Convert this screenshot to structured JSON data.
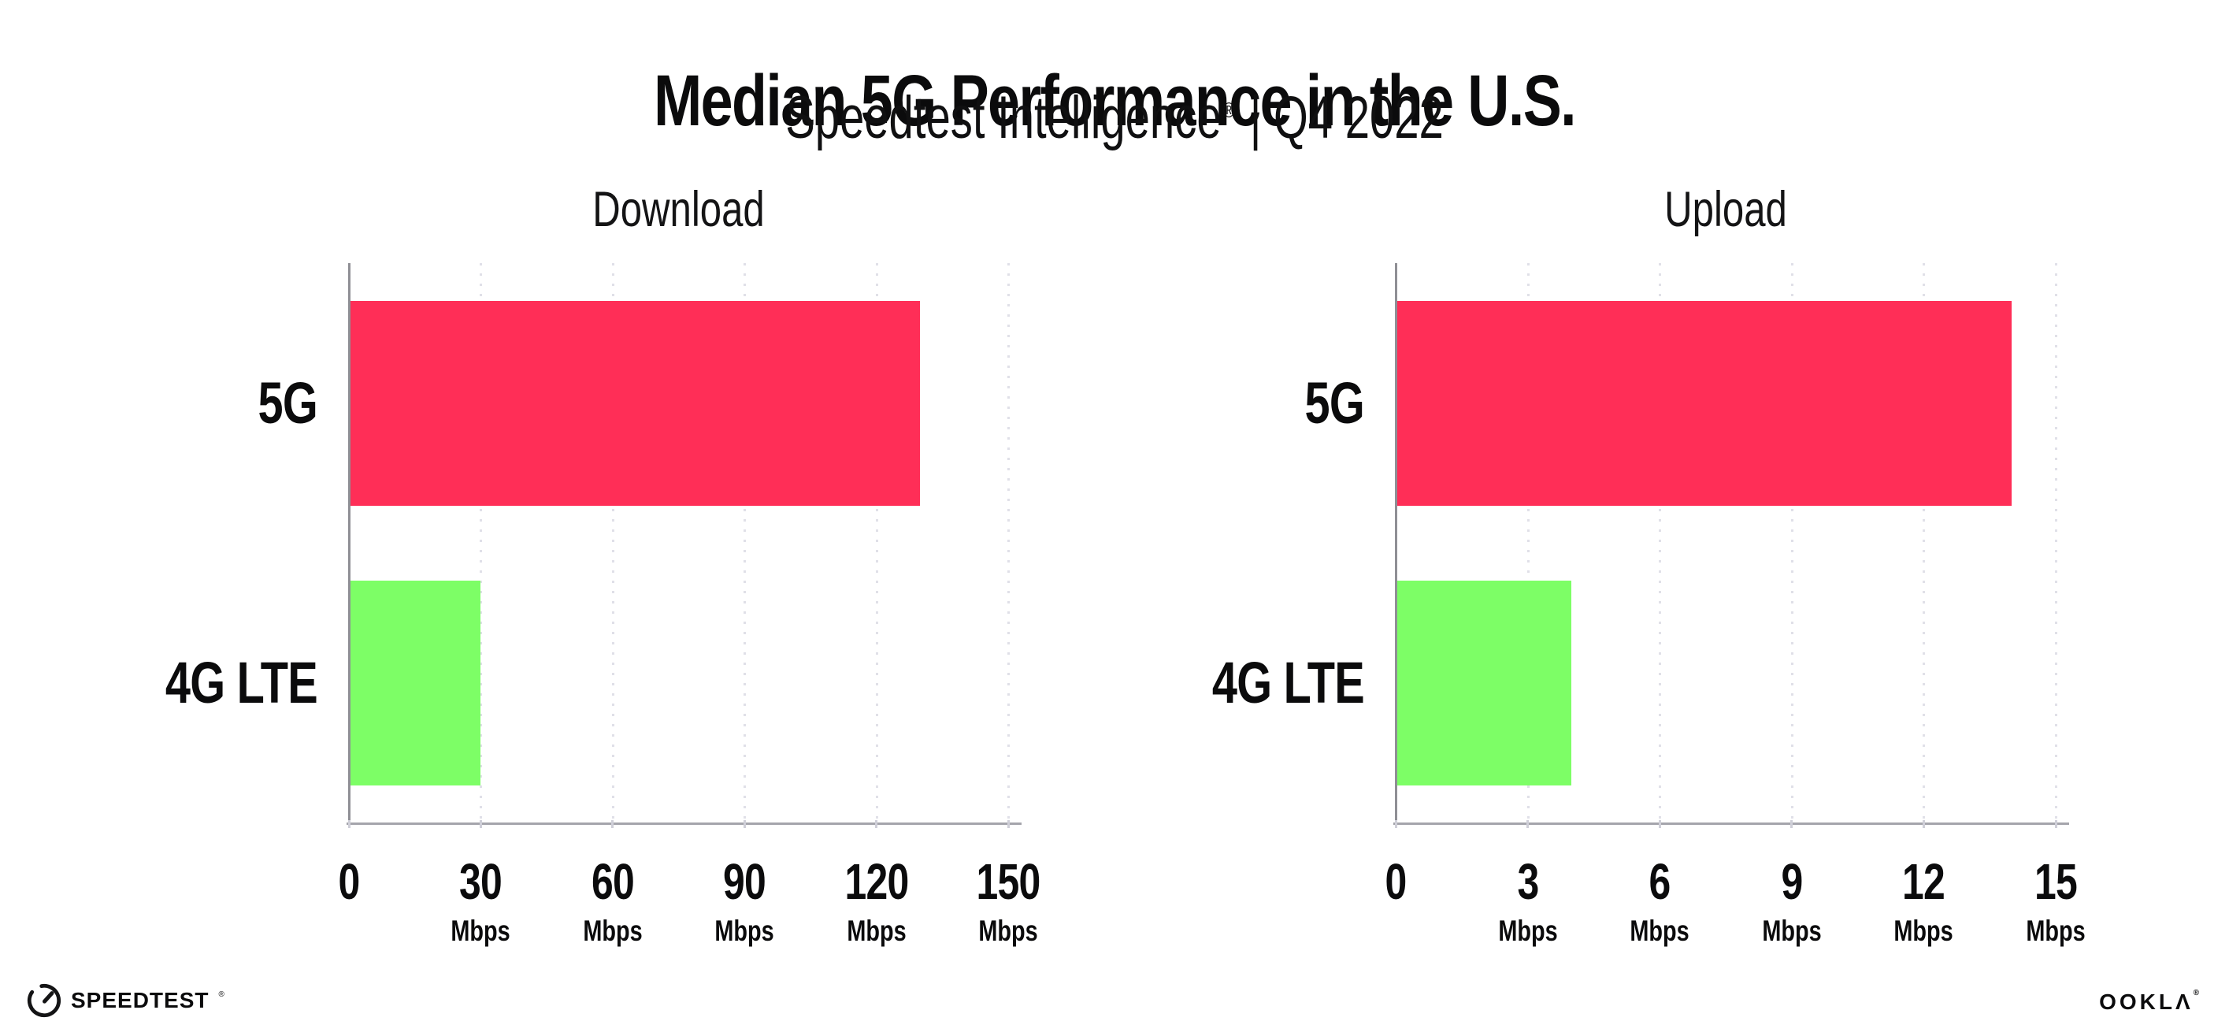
{
  "header": {
    "title": "Median 5G Performance in the U.S.",
    "subtitle_brand": "Speedtest Intelligence",
    "subtitle_reg": "®",
    "subtitle_rest": "| Q4 2022"
  },
  "colors": {
    "bar_5g": "#FF2E57",
    "bar_4g_lte": "#7DFE66",
    "x_axis_line": "#A5A5AC",
    "y_axis_line": "#8F8F95",
    "gridline": "#E0E0E8",
    "tick_mark": "#CFCFD8",
    "text": "#0B0B0C"
  },
  "chart_data": [
    {
      "type": "bar",
      "orientation": "horizontal",
      "title": "Download",
      "categories": [
        "5G",
        "4G LTE"
      ],
      "values": [
        130,
        30
      ],
      "unit": "Mbps",
      "xlim": [
        0,
        150
      ],
      "ticks": [
        {
          "value": 0,
          "label": "0",
          "unit": ""
        },
        {
          "value": 30,
          "label": "30",
          "unit": "Mbps"
        },
        {
          "value": 60,
          "label": "60",
          "unit": "Mbps"
        },
        {
          "value": 90,
          "label": "90",
          "unit": "Mbps"
        },
        {
          "value": 120,
          "label": "120",
          "unit": "Mbps"
        },
        {
          "value": 150,
          "label": "150",
          "unit": "Mbps"
        }
      ],
      "bar_colors": [
        "#FF2E57",
        "#7DFE66"
      ],
      "grid": "vertical-dotted",
      "legend": "none"
    },
    {
      "type": "bar",
      "orientation": "horizontal",
      "title": "Upload",
      "categories": [
        "5G",
        "4G LTE"
      ],
      "values": [
        14,
        4
      ],
      "unit": "Mbps",
      "xlim": [
        0,
        15
      ],
      "ticks": [
        {
          "value": 0,
          "label": "0",
          "unit": ""
        },
        {
          "value": 3,
          "label": "3",
          "unit": "Mbps"
        },
        {
          "value": 6,
          "label": "6",
          "unit": "Mbps"
        },
        {
          "value": 9,
          "label": "9",
          "unit": "Mbps"
        },
        {
          "value": 12,
          "label": "12",
          "unit": "Mbps"
        },
        {
          "value": 15,
          "label": "15",
          "unit": "Mbps"
        }
      ],
      "bar_colors": [
        "#FF2E57",
        "#7DFE66"
      ],
      "grid": "vertical-dotted",
      "legend": "none"
    }
  ],
  "footer": {
    "speedtest_label": "SPEEDTEST",
    "speedtest_reg": "®",
    "ookla_label": "OOKLΛ",
    "ookla_reg": "®"
  }
}
